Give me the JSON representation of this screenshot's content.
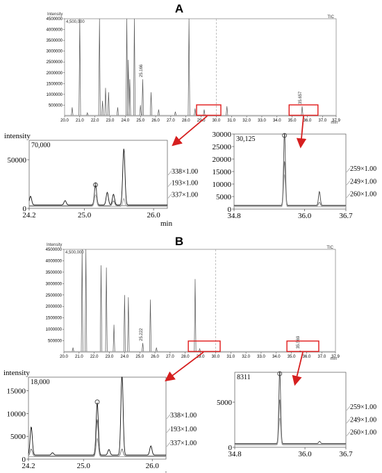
{
  "panel_letters": [
    "A",
    "B"
  ],
  "chart_data": [
    {
      "type": "line",
      "panel": "A",
      "y_header": "Intensity",
      "scale_label": "4,500,000",
      "corner_label": "TIC",
      "x_unit_label": "min",
      "xlim": [
        20.0,
        37.9
      ],
      "ylim": [
        0,
        4500000
      ],
      "yticks": [
        4500000,
        4000000,
        3500000,
        3000000,
        2500000,
        2000000,
        1500000,
        1000000,
        500000
      ],
      "ytick_labels": [
        "4500000",
        "4000000",
        "3500000",
        "3000000",
        "2500000",
        "2000000",
        "1500000",
        "1000000",
        "500000"
      ],
      "xticks": [
        20.0,
        21.0,
        22.0,
        23.0,
        24.0,
        25.0,
        26.0,
        27.0,
        28.0,
        29.0,
        30.0,
        31.0,
        32.0,
        33.0,
        34.0,
        35.0,
        36.0,
        37.0,
        37.9
      ],
      "xtick_labels": [
        "20.0",
        "21.0",
        "22.0",
        "23.0",
        "24.0",
        "25.0",
        "26.0",
        "27.0",
        "28.0",
        "29.0",
        "30.0",
        "31.0",
        "32.0",
        "33.0",
        "34.0",
        "35.0",
        "36.0",
        "37.0",
        "37.9"
      ],
      "peaks": [
        {
          "rt": 20.5,
          "y": 400000
        },
        {
          "rt": 21.0,
          "y": 4500000
        },
        {
          "rt": 21.5,
          "y": 150000
        },
        {
          "rt": 22.3,
          "y": 4500000
        },
        {
          "rt": 22.5,
          "y": 700000
        },
        {
          "rt": 22.7,
          "y": 1300000
        },
        {
          "rt": 22.9,
          "y": 1100000
        },
        {
          "rt": 23.5,
          "y": 400000
        },
        {
          "rt": 24.1,
          "y": 4500000
        },
        {
          "rt": 24.2,
          "y": 2600000
        },
        {
          "rt": 24.3,
          "y": 1700000
        },
        {
          "rt": 24.6,
          "y": 4500000
        },
        {
          "rt": 25.0,
          "y": 500000
        },
        {
          "rt": 25.15,
          "y": 1700000
        },
        {
          "rt": 25.7,
          "y": 1100000
        },
        {
          "rt": 26.2,
          "y": 300000
        },
        {
          "rt": 27.3,
          "y": 200000
        },
        {
          "rt": 28.2,
          "y": 4500000
        },
        {
          "rt": 28.6,
          "y": 350000
        },
        {
          "rt": 29.2,
          "y": 300000
        },
        {
          "rt": 30.7,
          "y": 450000
        },
        {
          "rt": 35.657,
          "y": 450000
        }
      ],
      "annotations": [
        {
          "rt": 25.166,
          "text": "25.166"
        },
        {
          "rt": 35.657,
          "text": "35.657"
        }
      ],
      "highlight_ranges": [
        [
          28.7,
          30.3
        ],
        [
          34.8,
          36.7
        ]
      ],
      "cursor_line_rt": 30.0
    },
    {
      "type": "line",
      "panel": "A-left",
      "y_axis_title": "intensity",
      "scale_label": "70,000",
      "x_unit_label": "min",
      "xlim": [
        24.2,
        26.2
      ],
      "ylim": [
        0,
        70000
      ],
      "yticks": [
        0,
        50000
      ],
      "ytick_labels": [
        "0",
        "50000"
      ],
      "xticks": [
        24.2,
        25.0,
        26.0
      ],
      "xtick_labels": [
        "24.2",
        "25.0",
        "26.0"
      ],
      "series": [
        {
          "name": "337×1.00",
          "peaks": [
            {
              "rt": 24.22,
              "y": 9000
            },
            {
              "rt": 24.72,
              "y": 4500
            },
            {
              "rt": 25.16,
              "y": 20000
            },
            {
              "rt": 25.33,
              "y": 13000
            },
            {
              "rt": 25.42,
              "y": 11000
            },
            {
              "rt": 25.57,
              "y": 58000
            }
          ]
        },
        {
          "name": "193×1.00",
          "peaks": [
            {
              "rt": 25.16,
              "y": 24000
            },
            {
              "rt": 25.42,
              "y": 5000
            }
          ]
        },
        {
          "name": "338×1.00",
          "peaks": [
            {
              "rt": 25.16,
              "y": 12000
            },
            {
              "rt": 25.57,
              "y": 8000
            }
          ]
        }
      ],
      "circle_marker_rt": 25.16
    },
    {
      "type": "line",
      "panel": "A-right",
      "scale_label": "30,125",
      "xlim": [
        34.8,
        36.7
      ],
      "ylim": [
        0,
        30000
      ],
      "yticks": [
        0,
        5000,
        10000,
        15000,
        20000,
        25000,
        30000
      ],
      "ytick_labels": [
        "0",
        "5000",
        "10000",
        "15000",
        "20000",
        "25000",
        "30000"
      ],
      "xticks": [
        34.8,
        36.0,
        36.7
      ],
      "xtick_labels": [
        "34.8",
        "36.0",
        "36.7"
      ],
      "series": [
        {
          "name": "260×1.00",
          "peaks": [
            {
              "rt": 35.657,
              "y": 29500
            },
            {
              "rt": 36.25,
              "y": 5500
            }
          ]
        },
        {
          "name": "249×1.00",
          "peaks": [
            {
              "rt": 35.657,
              "y": 18000
            },
            {
              "rt": 36.25,
              "y": 1500
            }
          ]
        },
        {
          "name": "259×1.00",
          "peaks": [
            {
              "rt": 35.657,
              "y": 13000
            }
          ]
        }
      ],
      "circle_marker_rt": 35.657
    },
    {
      "type": "line",
      "panel": "B",
      "y_header": "Intensity",
      "scale_label": "4,500,000",
      "corner_label": "TIC",
      "x_unit_label": "min",
      "xlim": [
        20.0,
        37.9
      ],
      "ylim": [
        0,
        4500000
      ],
      "yticks": [
        4500000,
        4000000,
        3500000,
        3000000,
        2500000,
        2000000,
        1500000,
        1000000,
        500000
      ],
      "ytick_labels": [
        "4500000",
        "4000000",
        "3500000",
        "3000000",
        "2500000",
        "2000000",
        "1500000",
        "1000000",
        "500000"
      ],
      "xticks": [
        20.0,
        21.0,
        22.0,
        23.0,
        24.0,
        25.0,
        26.0,
        27.0,
        28.0,
        29.0,
        30.0,
        31.0,
        32.0,
        33.0,
        34.0,
        35.0,
        36.0,
        37.0,
        37.9
      ],
      "xtick_labels": [
        "20.0",
        "21.0",
        "22.0",
        "23.0",
        "24.0",
        "25.0",
        "26.0",
        "27.0",
        "28.0",
        "29.0",
        "30.0",
        "31.0",
        "32.0",
        "33.0",
        "34.0",
        "35.0",
        "36.0",
        "37.0",
        "37.9"
      ],
      "peaks": [
        {
          "rt": 20.6,
          "y": 200000
        },
        {
          "rt": 21.2,
          "y": 4500000
        },
        {
          "rt": 21.45,
          "y": 4500000
        },
        {
          "rt": 22.45,
          "y": 3800000
        },
        {
          "rt": 22.8,
          "y": 3700000
        },
        {
          "rt": 23.3,
          "y": 1200000
        },
        {
          "rt": 24.0,
          "y": 2500000
        },
        {
          "rt": 24.25,
          "y": 2400000
        },
        {
          "rt": 25.2,
          "y": 400000
        },
        {
          "rt": 25.7,
          "y": 2300000
        },
        {
          "rt": 26.1,
          "y": 200000
        },
        {
          "rt": 28.65,
          "y": 3200000
        },
        {
          "rt": 28.95,
          "y": 150000
        },
        {
          "rt": 35.569,
          "y": 60000
        }
      ],
      "annotations": [
        {
          "rt": 25.222,
          "text": "25.222"
        },
        {
          "rt": 35.569,
          "text": "35.569"
        }
      ],
      "highlight_ranges": [
        [
          28.2,
          30.3
        ],
        [
          34.7,
          36.8
        ]
      ],
      "cursor_line_rt": 30.0
    },
    {
      "type": "line",
      "panel": "B-left",
      "y_axis_title": "intensity",
      "scale_label": "18,000",
      "x_unit_label": "min",
      "xlim": [
        24.2,
        26.2
      ],
      "ylim": [
        0,
        18000
      ],
      "yticks": [
        0,
        5000,
        10000,
        15000
      ],
      "ytick_labels": [
        "0",
        "5000",
        "10000",
        "15000"
      ],
      "xticks": [
        24.2,
        25.0,
        26.0
      ],
      "xtick_labels": [
        "24.2",
        "25.0",
        "26.0"
      ],
      "series": [
        {
          "name": "337×1.00",
          "peaks": [
            {
              "rt": 24.24,
              "y": 6200
            },
            {
              "rt": 24.55,
              "y": 500
            },
            {
              "rt": 25.2,
              "y": 11500
            },
            {
              "rt": 25.37,
              "y": 1200
            },
            {
              "rt": 25.56,
              "y": 18000
            },
            {
              "rt": 25.98,
              "y": 2000
            }
          ]
        },
        {
          "name": "193×1.00",
          "peaks": [
            {
              "rt": 24.24,
              "y": 1500
            },
            {
              "rt": 25.2,
              "y": 8000
            },
            {
              "rt": 25.56,
              "y": 1500
            }
          ]
        },
        {
          "name": "338×1.00",
          "peaks": [
            {
              "rt": 25.2,
              "y": 4000
            }
          ]
        }
      ],
      "circle_marker_rt": 25.2
    },
    {
      "type": "line",
      "panel": "B-right",
      "scale_label": "8311",
      "xlim": [
        34.8,
        36.7
      ],
      "ylim": [
        0,
        8311
      ],
      "yticks": [
        0,
        5000
      ],
      "ytick_labels": [
        "0",
        "5000"
      ],
      "xticks": [
        34.8,
        36.0,
        36.7
      ],
      "xtick_labels": [
        "34.8",
        "36.0",
        "36.7"
      ],
      "series": [
        {
          "name": "260×1.00",
          "peaks": [
            {
              "rt": 35.569,
              "y": 8200
            },
            {
              "rt": 36.25,
              "y": 250
            }
          ]
        },
        {
          "name": "249×1.00",
          "peaks": [
            {
              "rt": 35.569,
              "y": 5000
            }
          ]
        },
        {
          "name": "259×1.00",
          "peaks": [
            {
              "rt": 35.569,
              "y": 3000
            }
          ]
        }
      ],
      "circle_marker_rt": 35.569
    }
  ]
}
